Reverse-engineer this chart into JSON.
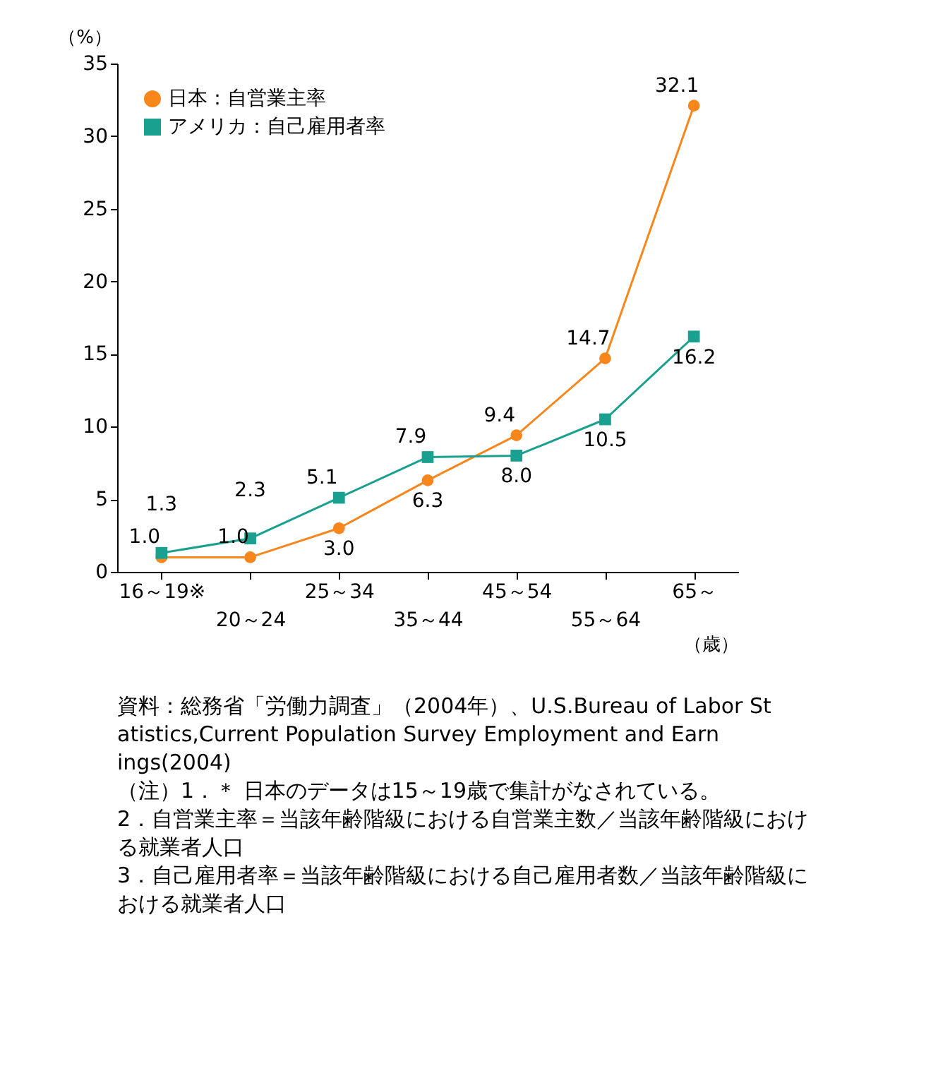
{
  "chart_data": {
    "type": "line",
    "ylabel": "（%）",
    "xlabel": "（歳）",
    "categories": [
      "16～19※",
      "20～24",
      "25～34",
      "35～44",
      "45～54",
      "55～64",
      "65～"
    ],
    "series": [
      {
        "name": "日本：自営業主率",
        "color": "#f7861d",
        "marker": "circle",
        "values": [
          1.0,
          1.0,
          3.0,
          6.3,
          9.4,
          14.7,
          32.1
        ],
        "value_labels": [
          "1.0",
          "1.0",
          "3.0",
          "6.3",
          "9.4",
          "14.7",
          "32.1"
        ]
      },
      {
        "name": "アメリカ：自己雇用者率",
        "color": "#1aa08e",
        "marker": "square",
        "values": [
          1.3,
          2.3,
          5.1,
          7.9,
          8.0,
          10.5,
          16.2
        ],
        "value_labels": [
          "1.3",
          "2.3",
          "5.1",
          "7.9",
          "8.0",
          "10.5",
          "16.2"
        ]
      }
    ],
    "ylim": [
      0,
      35
    ],
    "yticks": [
      0,
      5,
      10,
      15,
      20,
      25,
      30,
      35
    ],
    "grid": false,
    "legend": "top left",
    "line_style": "solid",
    "annotations": [
      "資料：総務省「労働力調査」（2004年）、U.S.Bureau of Labor Statistics,Current Population Survey Employment and Earnings(2004)",
      "（注）1．＊ 日本のデータは15～19歳で集計がなされている。",
      "2．自営業主率＝当該年齢階級における自営業主数／当該年齢階級における就業者人口",
      "3．自己雇用者率＝当該年齢階級における自己雇用者数／当該年齢階級における就業者人口"
    ]
  }
}
